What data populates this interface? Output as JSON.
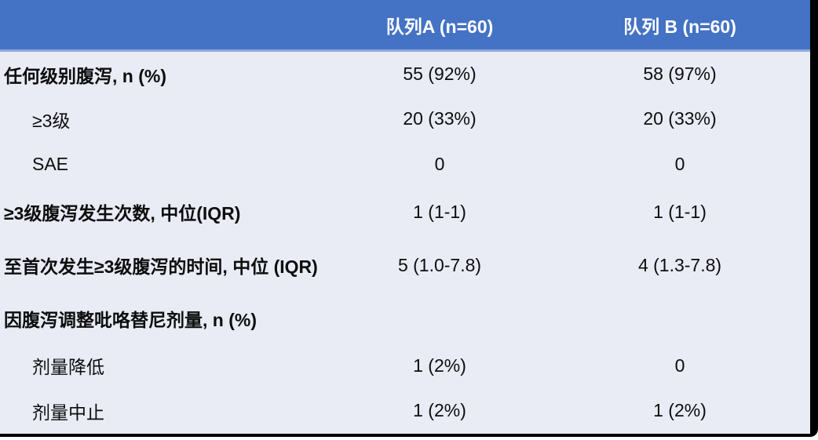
{
  "table": {
    "header": {
      "row_label_column": "",
      "cohort_a": "队列A (n=60)",
      "cohort_b": "队列 B (n=60)"
    },
    "rows": [
      {
        "label": "任何级别腹泻, n (%)",
        "a": "55 (92%)",
        "b": "58 (97%)"
      },
      {
        "label": "≥3级",
        "a": "20 (33%)",
        "b": "20 (33%)"
      },
      {
        "label": "SAE",
        "a": "0",
        "b": "0"
      },
      {
        "label": "≥3级腹泻发生次数, 中位(IQR)",
        "a": "1 (1-1)",
        "b": "1 (1-1)"
      },
      {
        "label": "至首次发生≥3级腹泻的时间, 中位 (IQR)",
        "a": "5 (1.0-7.8)",
        "b": "4 (1.3-7.8)"
      },
      {
        "label": "因腹泻调整吡咯替尼剂量, n (%)",
        "a": "",
        "b": ""
      },
      {
        "label": "剂量降低",
        "a": "1 (2%)",
        "b": "0"
      },
      {
        "label": "剂量中止",
        "a": "1 (2%)",
        "b": "1 (2%)"
      }
    ],
    "colors": {
      "header_bg": "#4472C4",
      "header_text": "#FFFFFF",
      "header_divider": "#8FAADC",
      "body_bg": "#E9EBF5",
      "body_text": "#0D0D0D",
      "outer_border": "#000000"
    }
  }
}
